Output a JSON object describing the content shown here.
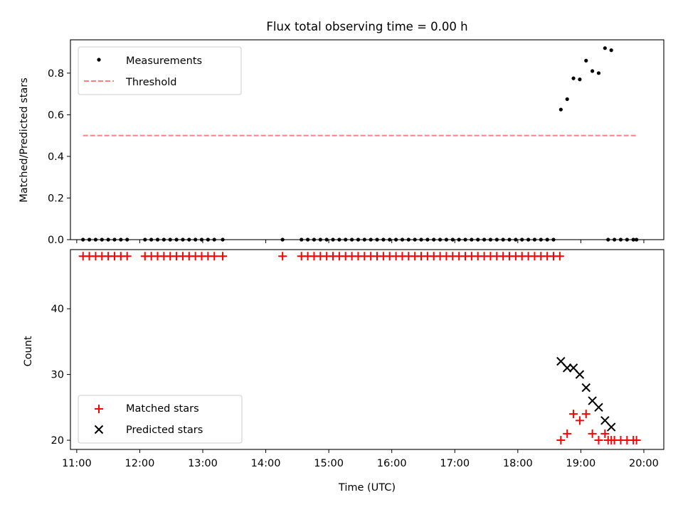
{
  "figure_title": "Flux total observing time = 0.00 h",
  "colors": {
    "threshold": "#ff7f7f",
    "matched": "#ff0000",
    "predicted": "#000000",
    "measurement": "#000000"
  },
  "chart_data": [
    {
      "type": "scatter",
      "title": "Flux total observing time = 0.00 h",
      "xlabel": "",
      "ylabel": "Matched/Predicted stars",
      "xlim": [
        "10:54",
        "20:19"
      ],
      "ylim": [
        0,
        0.96
      ],
      "yticks": [
        0.0,
        0.2,
        0.4,
        0.6,
        0.8
      ],
      "ytick_labels": [
        "0.0",
        "0.2",
        "0.4",
        "0.6",
        "0.8"
      ],
      "grid": false,
      "legend_loc": "upper left",
      "series": [
        {
          "name": "Measurements",
          "marker": "dot",
          "points": [
            [
              "11:06",
              0
            ],
            [
              "11:12",
              0
            ],
            [
              "11:18",
              0
            ],
            [
              "11:24",
              0
            ],
            [
              "11:30",
              0
            ],
            [
              "11:36",
              0
            ],
            [
              "11:42",
              0
            ],
            [
              "11:48",
              0
            ],
            [
              "12:05",
              0
            ],
            [
              "12:11",
              0
            ],
            [
              "12:17",
              0
            ],
            [
              "12:23",
              0
            ],
            [
              "12:29",
              0
            ],
            [
              "12:35",
              0
            ],
            [
              "12:41",
              0
            ],
            [
              "12:47",
              0
            ],
            [
              "12:53",
              0
            ],
            [
              "12:59",
              0
            ],
            [
              "13:05",
              0
            ],
            [
              "13:11",
              0
            ],
            [
              "13:19",
              0
            ],
            [
              "14:16",
              0
            ],
            [
              "14:34",
              0
            ],
            [
              "14:40",
              0
            ],
            [
              "14:46",
              0
            ],
            [
              "14:52",
              0
            ],
            [
              "14:58",
              0
            ],
            [
              "15:04",
              0
            ],
            [
              "15:10",
              0
            ],
            [
              "15:16",
              0
            ],
            [
              "15:22",
              0
            ],
            [
              "15:28",
              0
            ],
            [
              "15:34",
              0
            ],
            [
              "15:40",
              0
            ],
            [
              "15:46",
              0
            ],
            [
              "15:52",
              0
            ],
            [
              "15:58",
              0
            ],
            [
              "16:04",
              0
            ],
            [
              "16:10",
              0
            ],
            [
              "16:16",
              0
            ],
            [
              "16:22",
              0
            ],
            [
              "16:28",
              0
            ],
            [
              "16:34",
              0
            ],
            [
              "16:40",
              0
            ],
            [
              "16:46",
              0
            ],
            [
              "16:52",
              0
            ],
            [
              "16:58",
              0
            ],
            [
              "17:04",
              0
            ],
            [
              "17:10",
              0
            ],
            [
              "17:16",
              0
            ],
            [
              "17:22",
              0
            ],
            [
              "17:28",
              0
            ],
            [
              "17:34",
              0
            ],
            [
              "17:40",
              0
            ],
            [
              "17:46",
              0
            ],
            [
              "17:52",
              0
            ],
            [
              "17:58",
              0
            ],
            [
              "18:04",
              0
            ],
            [
              "18:10",
              0
            ],
            [
              "18:16",
              0
            ],
            [
              "18:22",
              0
            ],
            [
              "18:28",
              0
            ],
            [
              "18:34",
              0
            ],
            [
              "18:41",
              0.625
            ],
            [
              "18:47",
              0.675
            ],
            [
              "18:53",
              0.775
            ],
            [
              "18:59",
              0.77
            ],
            [
              "19:05",
              0.86
            ],
            [
              "19:11",
              0.81
            ],
            [
              "19:17",
              0.8
            ],
            [
              "19:23",
              0.92
            ],
            [
              "19:29",
              0.91
            ],
            [
              "19:26",
              0
            ],
            [
              "19:32",
              0
            ],
            [
              "19:38",
              0
            ],
            [
              "19:44",
              0
            ],
            [
              "19:50",
              0
            ],
            [
              "19:53",
              0
            ]
          ]
        },
        {
          "name": "Threshold",
          "style": "dashed-line",
          "points": [
            [
              "11:06",
              0.5
            ],
            [
              "19:53",
              0.5
            ]
          ]
        }
      ]
    },
    {
      "type": "scatter",
      "title": "",
      "xlabel": "Time (UTC)",
      "ylabel": "Count",
      "xlim": [
        "10:54",
        "20:19"
      ],
      "ylim": [
        18.6,
        49.0
      ],
      "yticks": [
        20,
        30,
        40
      ],
      "ytick_labels": [
        "20",
        "30",
        "40"
      ],
      "xticks": [
        "11:00",
        "12:00",
        "13:00",
        "14:00",
        "15:00",
        "16:00",
        "17:00",
        "18:00",
        "19:00",
        "20:00"
      ],
      "grid": false,
      "legend_loc": "lower left",
      "series": [
        {
          "name": "Matched stars",
          "marker": "plus",
          "points": [
            [
              "11:06",
              48
            ],
            [
              "11:12",
              48
            ],
            [
              "11:18",
              48
            ],
            [
              "11:24",
              48
            ],
            [
              "11:30",
              48
            ],
            [
              "11:36",
              48
            ],
            [
              "11:42",
              48
            ],
            [
              "11:48",
              48
            ],
            [
              "12:05",
              48
            ],
            [
              "12:11",
              48
            ],
            [
              "12:17",
              48
            ],
            [
              "12:23",
              48
            ],
            [
              "12:29",
              48
            ],
            [
              "12:35",
              48
            ],
            [
              "12:41",
              48
            ],
            [
              "12:47",
              48
            ],
            [
              "12:53",
              48
            ],
            [
              "12:59",
              48
            ],
            [
              "13:05",
              48
            ],
            [
              "13:11",
              48
            ],
            [
              "13:19",
              48
            ],
            [
              "14:16",
              48
            ],
            [
              "14:34",
              48
            ],
            [
              "14:40",
              48
            ],
            [
              "14:46",
              48
            ],
            [
              "14:52",
              48
            ],
            [
              "14:58",
              48
            ],
            [
              "15:04",
              48
            ],
            [
              "15:10",
              48
            ],
            [
              "15:16",
              48
            ],
            [
              "15:22",
              48
            ],
            [
              "15:28",
              48
            ],
            [
              "15:34",
              48
            ],
            [
              "15:40",
              48
            ],
            [
              "15:46",
              48
            ],
            [
              "15:52",
              48
            ],
            [
              "15:58",
              48
            ],
            [
              "16:04",
              48
            ],
            [
              "16:10",
              48
            ],
            [
              "16:16",
              48
            ],
            [
              "16:22",
              48
            ],
            [
              "16:28",
              48
            ],
            [
              "16:34",
              48
            ],
            [
              "16:40",
              48
            ],
            [
              "16:46",
              48
            ],
            [
              "16:52",
              48
            ],
            [
              "16:58",
              48
            ],
            [
              "17:04",
              48
            ],
            [
              "17:10",
              48
            ],
            [
              "17:16",
              48
            ],
            [
              "17:22",
              48
            ],
            [
              "17:28",
              48
            ],
            [
              "17:34",
              48
            ],
            [
              "17:40",
              48
            ],
            [
              "17:46",
              48
            ],
            [
              "17:52",
              48
            ],
            [
              "17:58",
              48
            ],
            [
              "18:04",
              48
            ],
            [
              "18:10",
              48
            ],
            [
              "18:16",
              48
            ],
            [
              "18:22",
              48
            ],
            [
              "18:28",
              48
            ],
            [
              "18:34",
              48
            ],
            [
              "18:40",
              48
            ],
            [
              "18:41",
              20
            ],
            [
              "18:47",
              21
            ],
            [
              "18:53",
              24
            ],
            [
              "18:59",
              23
            ],
            [
              "19:05",
              24
            ],
            [
              "19:11",
              21
            ],
            [
              "19:17",
              20
            ],
            [
              "19:23",
              21
            ],
            [
              "19:29",
              20
            ],
            [
              "19:26",
              20
            ],
            [
              "19:32",
              20
            ],
            [
              "19:38",
              20
            ],
            [
              "19:44",
              20
            ],
            [
              "19:50",
              20
            ],
            [
              "19:53",
              20
            ]
          ]
        },
        {
          "name": "Predicted stars",
          "marker": "x",
          "points": [
            [
              "18:41",
              32
            ],
            [
              "18:47",
              31
            ],
            [
              "18:53",
              31
            ],
            [
              "18:59",
              30
            ],
            [
              "19:05",
              28
            ],
            [
              "19:11",
              26
            ],
            [
              "19:17",
              25
            ],
            [
              "19:23",
              23
            ],
            [
              "19:29",
              22
            ]
          ]
        }
      ]
    }
  ]
}
